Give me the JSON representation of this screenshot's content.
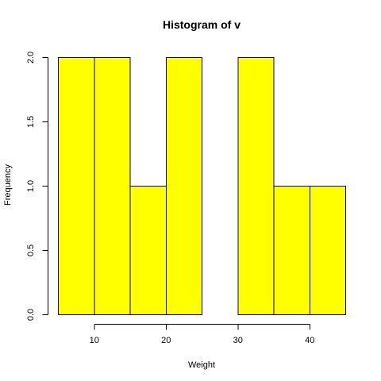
{
  "chart_data": {
    "type": "bar",
    "title": "Histogram of v",
    "xlabel": "Weight",
    "ylabel": "Frequency",
    "bins": [
      {
        "start": 5,
        "end": 10,
        "count": 2
      },
      {
        "start": 10,
        "end": 15,
        "count": 2
      },
      {
        "start": 15,
        "end": 20,
        "count": 1
      },
      {
        "start": 20,
        "end": 25,
        "count": 2
      },
      {
        "start": 25,
        "end": 30,
        "count": 0
      },
      {
        "start": 30,
        "end": 35,
        "count": 2
      },
      {
        "start": 35,
        "end": 40,
        "count": 1
      },
      {
        "start": 40,
        "end": 45,
        "count": 1
      }
    ],
    "xlim": [
      5,
      45
    ],
    "ylim": [
      0,
      2
    ],
    "x_ticks": [
      10,
      20,
      30,
      40
    ],
    "y_ticks": [
      "0.0",
      "0.5",
      "1.0",
      "1.5",
      "2.0"
    ],
    "bar_fill_color": "#ffff00",
    "bar_border_color": "#00008b",
    "grid": false,
    "legend": "none"
  }
}
